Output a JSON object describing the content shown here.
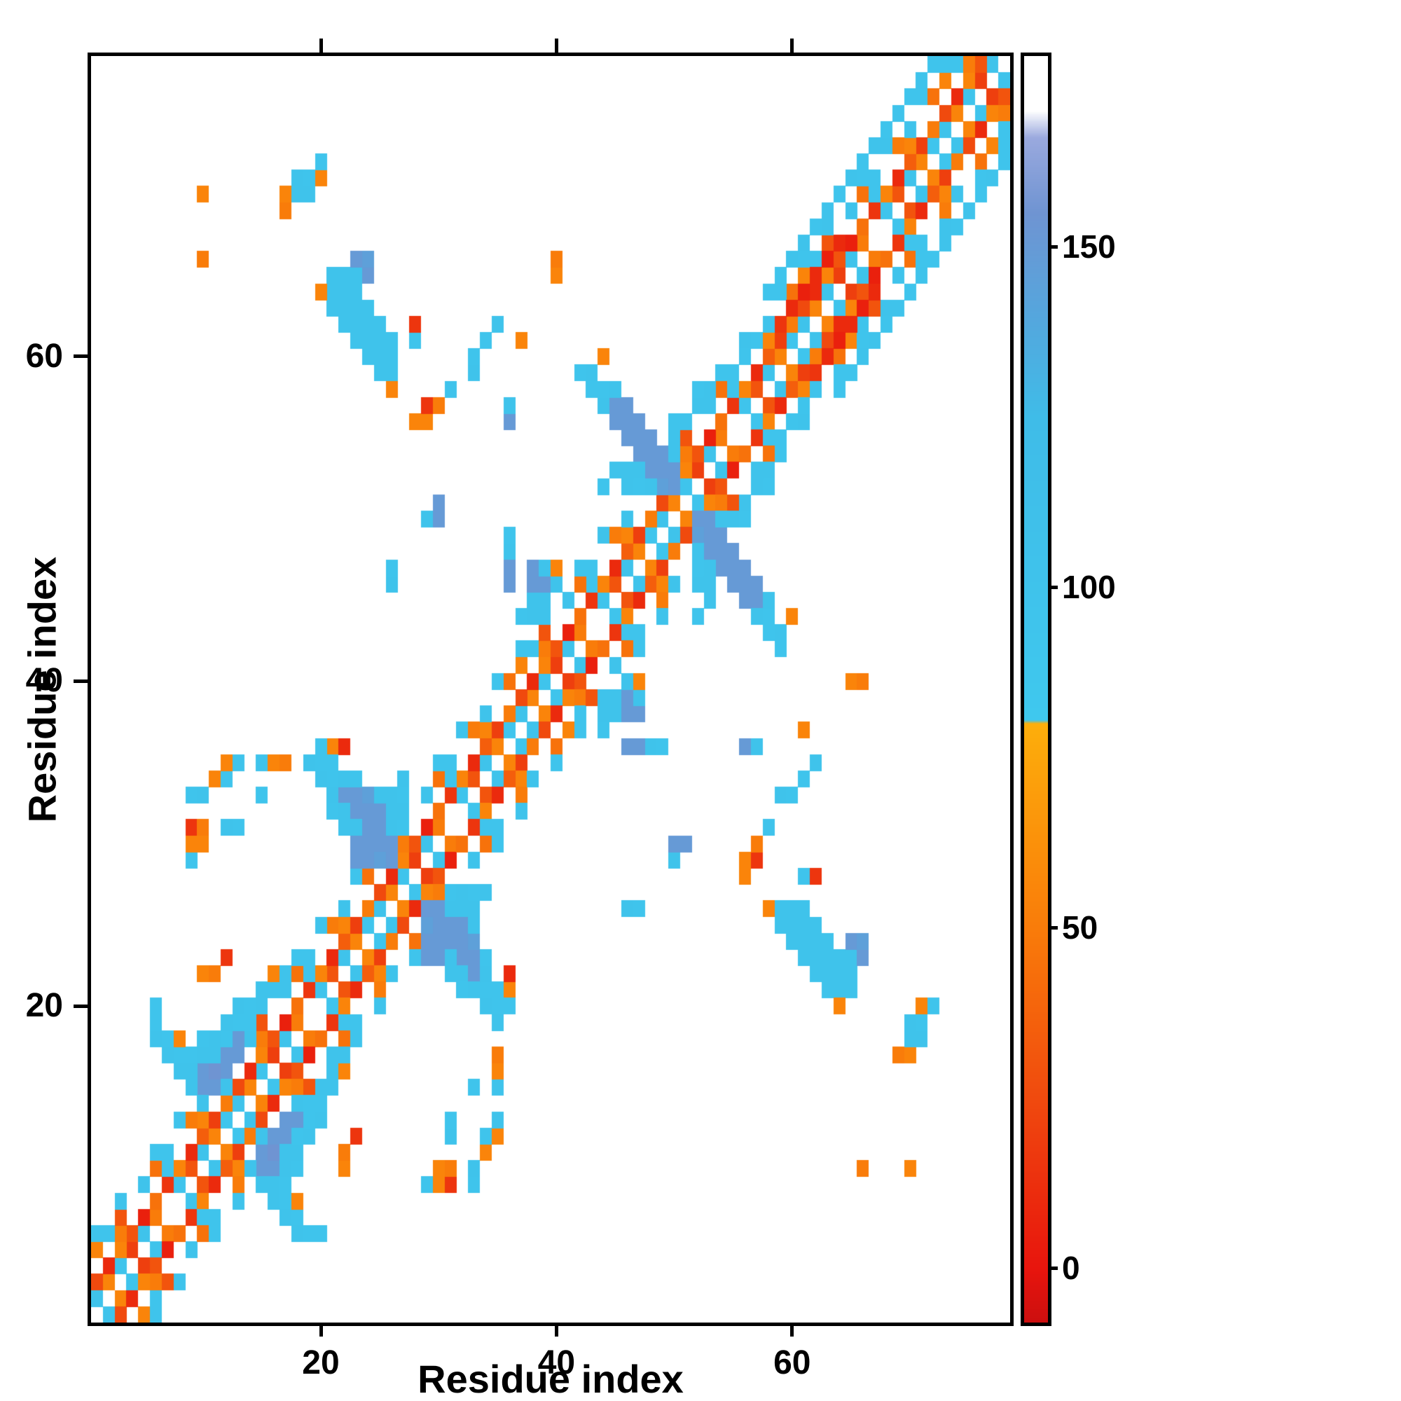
{
  "axes": {
    "x_label": "Residue index",
    "y_label": "Residue index",
    "x_ticks": [
      20,
      40,
      60
    ],
    "y_ticks": [
      20,
      40,
      60
    ],
    "range": [
      0.5,
      78.5
    ]
  },
  "colorbar": {
    "ticks": [
      0,
      50,
      100,
      150
    ],
    "vmin": -8,
    "vmax": 178
  },
  "chart_data": {
    "type": "heatmap",
    "title": "",
    "n": 78,
    "symmetric": true,
    "background_value_color": "#ffffff",
    "colormap_stops": [
      [
        -8,
        "#cc0f0f"
      ],
      [
        0,
        "#e8150d"
      ],
      [
        25,
        "#f04a0e"
      ],
      [
        50,
        "#f97c0a"
      ],
      [
        80,
        "#fdae0b"
      ],
      [
        80.5,
        "#3fc8ee"
      ],
      [
        125,
        "#3fbce8"
      ],
      [
        140,
        "#55a6dd"
      ],
      [
        155,
        "#6f94d2"
      ],
      [
        166,
        "#9aa9de"
      ],
      [
        170,
        "#ffffff"
      ],
      [
        178,
        "#ffffff"
      ]
    ],
    "bands": [
      {
        "offset": 1,
        "pattern": [
          100,
          55,
          95,
          20,
          100,
          50,
          null,
          95,
          30,
          100,
          55,
          90
        ]
      },
      {
        "offset": 2,
        "pattern": [
          25,
          10,
          55,
          30,
          5,
          45,
          15,
          55,
          10,
          35,
          20,
          50
        ]
      },
      {
        "offset": 3,
        "pattern": [
          null,
          null,
          50,
          null,
          null,
          null,
          95,
          null,
          null,
          55,
          null,
          null
        ]
      },
      {
        "offset": 4,
        "pattern": [
          55,
          95,
          30,
          null,
          100,
          45,
          95,
          null,
          50,
          100,
          null,
          45
        ]
      },
      {
        "offset": 5,
        "pattern": [
          95,
          null,
          100,
          null,
          null,
          95,
          null,
          100,
          null,
          null,
          95,
          null
        ]
      }
    ],
    "pairs": [
      [
        10,
        15,
        150
      ],
      [
        10,
        16,
        150
      ],
      [
        11,
        15,
        150
      ],
      [
        11,
        16,
        155
      ],
      [
        12,
        16,
        150
      ],
      [
        12,
        17,
        150
      ],
      [
        13,
        17,
        150
      ],
      [
        13,
        18,
        150
      ],
      [
        9,
        15,
        100
      ],
      [
        9,
        16,
        100
      ],
      [
        9,
        17,
        95
      ],
      [
        10,
        14,
        100
      ],
      [
        10,
        17,
        100
      ],
      [
        10,
        18,
        95
      ],
      [
        11,
        17,
        100
      ],
      [
        11,
        18,
        100
      ],
      [
        12,
        15,
        100
      ],
      [
        12,
        18,
        95
      ],
      [
        12,
        19,
        100
      ],
      [
        13,
        19,
        95
      ],
      [
        14,
        18,
        100
      ],
      [
        14,
        19,
        95
      ],
      [
        8,
        16,
        100
      ],
      [
        8,
        17,
        95
      ],
      [
        7,
        17,
        100
      ],
      [
        7,
        18,
        95
      ],
      [
        6,
        18,
        100
      ],
      [
        6,
        19,
        95
      ],
      [
        6,
        20,
        95
      ],
      [
        8,
        18,
        55
      ],
      [
        14,
        20,
        95
      ],
      [
        15,
        21,
        100
      ],
      [
        16,
        21,
        100
      ],
      [
        16,
        22,
        55
      ],
      [
        17,
        22,
        100
      ],
      [
        18,
        23,
        95
      ],
      [
        13,
        20,
        100
      ],
      [
        10,
        22,
        55
      ],
      [
        11,
        22,
        50
      ],
      [
        12,
        23,
        15
      ],
      [
        9,
        29,
        95
      ],
      [
        9,
        30,
        55
      ],
      [
        10,
        30,
        55
      ],
      [
        9,
        31,
        15
      ],
      [
        10,
        31,
        50
      ],
      [
        12,
        31,
        100
      ],
      [
        13,
        31,
        95
      ],
      [
        9,
        33,
        95
      ],
      [
        10,
        33,
        100
      ],
      [
        11,
        34,
        55
      ],
      [
        12,
        34,
        95
      ],
      [
        12,
        35,
        55
      ],
      [
        13,
        35,
        100
      ],
      [
        15,
        33,
        95
      ],
      [
        15,
        35,
        100
      ],
      [
        16,
        35,
        55
      ],
      [
        17,
        35,
        50
      ],
      [
        21,
        36,
        55
      ],
      [
        22,
        36,
        10
      ],
      [
        22,
        33,
        150
      ],
      [
        23,
        32,
        150
      ],
      [
        24,
        31,
        150
      ],
      [
        25,
        30,
        150
      ],
      [
        26,
        29,
        150
      ],
      [
        23,
        33,
        150
      ],
      [
        24,
        32,
        150
      ],
      [
        25,
        31,
        150
      ],
      [
        26,
        30,
        150
      ],
      [
        24,
        33,
        145
      ],
      [
        25,
        32,
        150
      ],
      [
        23,
        29,
        150
      ],
      [
        23,
        30,
        150
      ],
      [
        24,
        29,
        150
      ],
      [
        24,
        30,
        150
      ],
      [
        25,
        29,
        145
      ],
      [
        21,
        33,
        100
      ],
      [
        21,
        34,
        95
      ],
      [
        22,
        32,
        100
      ],
      [
        22,
        34,
        100
      ],
      [
        23,
        31,
        100
      ],
      [
        23,
        34,
        95
      ],
      [
        26,
        31,
        100
      ],
      [
        26,
        32,
        100
      ],
      [
        27,
        31,
        95
      ],
      [
        27,
        32,
        100
      ],
      [
        26,
        33,
        100
      ],
      [
        27,
        33,
        95
      ],
      [
        20,
        34,
        100
      ],
      [
        20,
        35,
        95
      ],
      [
        19,
        35,
        100
      ],
      [
        21,
        35,
        95
      ],
      [
        20,
        36,
        95
      ],
      [
        27,
        34,
        100
      ],
      [
        25,
        33,
        100
      ],
      [
        22,
        31,
        100
      ],
      [
        21,
        32,
        95
      ],
      [
        26,
        46,
        100
      ],
      [
        26,
        47,
        95
      ],
      [
        29,
        50,
        100
      ],
      [
        30,
        50,
        150
      ],
      [
        30,
        51,
        150
      ],
      [
        36,
        46,
        150
      ],
      [
        36,
        47,
        150
      ],
      [
        36,
        48,
        100
      ],
      [
        36,
        49,
        95
      ],
      [
        37,
        44,
        95
      ],
      [
        38,
        44,
        100
      ],
      [
        38,
        45,
        100
      ],
      [
        38,
        46,
        150
      ],
      [
        38,
        47,
        150
      ],
      [
        39,
        45,
        100
      ],
      [
        39,
        46,
        150
      ],
      [
        39,
        47,
        100
      ],
      [
        40,
        46,
        100
      ],
      [
        40,
        47,
        55
      ],
      [
        45,
        57,
        150
      ],
      [
        46,
        56,
        150
      ],
      [
        47,
        55,
        150
      ],
      [
        48,
        54,
        150
      ],
      [
        49,
        53,
        150
      ],
      [
        50,
        52,
        150
      ],
      [
        46,
        57,
        150
      ],
      [
        47,
        56,
        150
      ],
      [
        48,
        55,
        150
      ],
      [
        49,
        54,
        150
      ],
      [
        50,
        53,
        150
      ],
      [
        45,
        56,
        150
      ],
      [
        46,
        55,
        150
      ],
      [
        47,
        54,
        150
      ],
      [
        48,
        53,
        150
      ],
      [
        49,
        52,
        145
      ],
      [
        44,
        57,
        100
      ],
      [
        44,
        58,
        95
      ],
      [
        45,
        58,
        100
      ],
      [
        43,
        58,
        95
      ],
      [
        43,
        59,
        100
      ],
      [
        42,
        59,
        95
      ],
      [
        50,
        54,
        100
      ],
      [
        50,
        55,
        100
      ],
      [
        50,
        56,
        95
      ],
      [
        51,
        56,
        100
      ],
      [
        52,
        57,
        100
      ],
      [
        52,
        58,
        95
      ],
      [
        53,
        58,
        100
      ],
      [
        44,
        52,
        95
      ],
      [
        45,
        53,
        100
      ],
      [
        46,
        52,
        100
      ],
      [
        47,
        52,
        95
      ],
      [
        46,
        53,
        100
      ],
      [
        47,
        53,
        100
      ],
      [
        48,
        52,
        100
      ],
      [
        44,
        60,
        55
      ],
      [
        28,
        56,
        55
      ],
      [
        29,
        56,
        55
      ],
      [
        29,
        57,
        15
      ],
      [
        30,
        57,
        50
      ],
      [
        31,
        58,
        100
      ],
      [
        33,
        59,
        100
      ],
      [
        33,
        60,
        95
      ],
      [
        34,
        61,
        95
      ],
      [
        35,
        62,
        100
      ],
      [
        36,
        56,
        150
      ],
      [
        36,
        57,
        100
      ],
      [
        28,
        61,
        95
      ],
      [
        28,
        62,
        15
      ],
      [
        37,
        61,
        55
      ],
      [
        40,
        65,
        55
      ],
      [
        40,
        66,
        50
      ],
      [
        21,
        63,
        100
      ],
      [
        21,
        64,
        100
      ],
      [
        21,
        65,
        100
      ],
      [
        22,
        62,
        100
      ],
      [
        22,
        63,
        100
      ],
      [
        22,
        64,
        100
      ],
      [
        22,
        65,
        100
      ],
      [
        23,
        61,
        100
      ],
      [
        23,
        62,
        100
      ],
      [
        23,
        63,
        100
      ],
      [
        23,
        64,
        100
      ],
      [
        23,
        65,
        100
      ],
      [
        23,
        66,
        150
      ],
      [
        24,
        60,
        100
      ],
      [
        24,
        61,
        100
      ],
      [
        24,
        62,
        100
      ],
      [
        24,
        63,
        100
      ],
      [
        24,
        65,
        150
      ],
      [
        24,
        66,
        145
      ],
      [
        25,
        59,
        100
      ],
      [
        25,
        60,
        100
      ],
      [
        25,
        61,
        100
      ],
      [
        25,
        62,
        100
      ],
      [
        26,
        59,
        100
      ],
      [
        26,
        60,
        100
      ],
      [
        26,
        61,
        100
      ],
      [
        20,
        64,
        55
      ],
      [
        26,
        58,
        55
      ],
      [
        17,
        69,
        50
      ],
      [
        17,
        70,
        55
      ],
      [
        18,
        70,
        100
      ],
      [
        18,
        71,
        100
      ],
      [
        19,
        70,
        100
      ],
      [
        19,
        71,
        95
      ],
      [
        20,
        71,
        55
      ],
      [
        20,
        72,
        95
      ],
      [
        10,
        66,
        50
      ],
      [
        10,
        70,
        55
      ],
      [
        56,
        60,
        95
      ],
      [
        57,
        61,
        95
      ],
      [
        58,
        64,
        95
      ],
      [
        59,
        65,
        95
      ],
      [
        60,
        66,
        100
      ],
      [
        61,
        67,
        100
      ],
      [
        62,
        68,
        95
      ],
      [
        63,
        69,
        100
      ],
      [
        64,
        70,
        95
      ],
      [
        65,
        71,
        100
      ],
      [
        66,
        72,
        95
      ],
      [
        67,
        73,
        100
      ],
      [
        68,
        74,
        95
      ],
      [
        69,
        75,
        100
      ],
      [
        70,
        76,
        95
      ],
      [
        71,
        77,
        100
      ],
      [
        72,
        78,
        95
      ],
      [
        59,
        62,
        15
      ],
      [
        60,
        63,
        10
      ],
      [
        61,
        64,
        5
      ],
      [
        62,
        65,
        10
      ],
      [
        63,
        66,
        5
      ],
      [
        64,
        67,
        10
      ]
    ]
  }
}
